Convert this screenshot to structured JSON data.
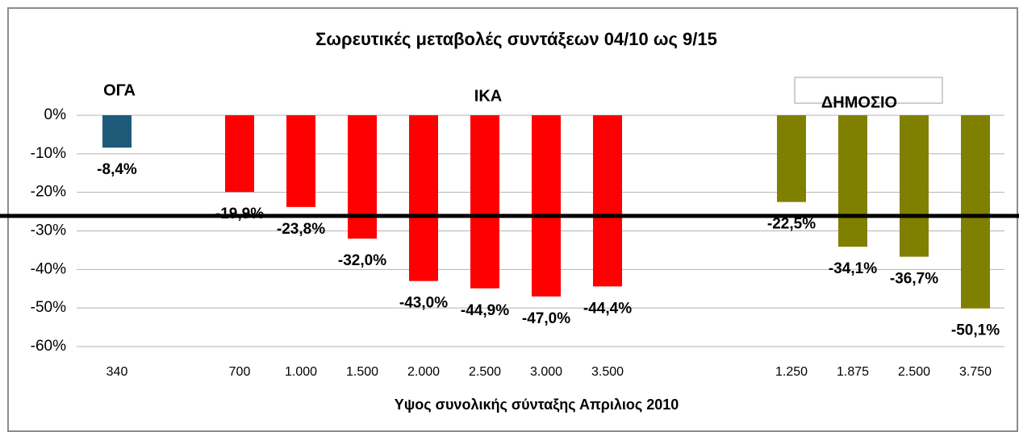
{
  "chart_data": {
    "type": "bar",
    "title": "Σωρευτικές μεταβολές συντάξεων 04/10 ως 9/15",
    "x_label": "Υψος συνολικής σύνταξης Απριλιος 2010",
    "annotations": [
      "ΟΓΑ",
      "ΙΚΑ",
      "ΔΗΜΟΣΙΟ"
    ],
    "categories": [
      "340",
      null,
      "700",
      "1.000",
      "1.500",
      "2.000",
      "2.500",
      "3.000",
      "3.500",
      null,
      null,
      "1.250",
      "1.875",
      "2.500",
      "3.750"
    ],
    "values": [
      -8.4,
      null,
      -19.9,
      -23.8,
      -32.0,
      -43.0,
      -44.9,
      -47.0,
      -44.4,
      null,
      null,
      -22.5,
      -34.1,
      -36.7,
      -50.1
    ],
    "value_labels": [
      "-8,4%",
      null,
      "-19,9%",
      "-23,8%",
      "-32,0%",
      "-43,0%",
      "-44,9%",
      "-47,0%",
      "-44,4%",
      null,
      null,
      "-22,5%",
      "-34,1%",
      "-36,7%",
      "-50,1%"
    ],
    "colors": [
      "#1d5b79",
      null,
      "#ff0000",
      "#ff0000",
      "#ff0000",
      "#ff0000",
      "#ff0000",
      "#ff0000",
      "#ff0000",
      null,
      null,
      "#808000",
      "#808000",
      "#808000",
      "#808000"
    ],
    "reference_line": -26.1,
    "ylim": [
      -60,
      0
    ],
    "yticks": [
      {
        "value": 0,
        "label": "0%"
      },
      {
        "value": -10,
        "label": "-10%"
      },
      {
        "value": -20,
        "label": "-20%"
      },
      {
        "value": -30,
        "label": "-30%"
      },
      {
        "value": -40,
        "label": "-40%"
      },
      {
        "value": -50,
        "label": "-50%"
      },
      {
        "value": -60,
        "label": "-60%"
      }
    ],
    "grid": true
  }
}
